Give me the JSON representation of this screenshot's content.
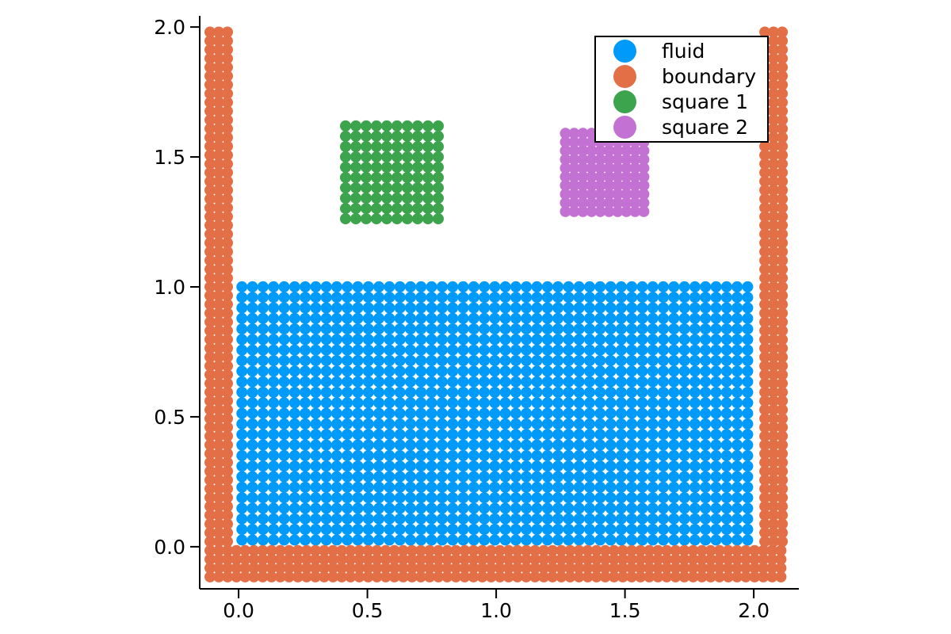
{
  "chart_data": {
    "type": "scatter",
    "title": "",
    "xlabel": "",
    "ylabel": "",
    "grid": false,
    "xlim": [
      -0.151,
      2.175
    ],
    "ylim": [
      -0.162,
      2.043
    ],
    "xticks": {
      "values": [
        0.0,
        0.5,
        1.0,
        1.5,
        2.0
      ],
      "labels": [
        "0.0",
        "0.5",
        "1.0",
        "1.5",
        "2.0"
      ]
    },
    "yticks": {
      "values": [
        0.0,
        0.5,
        1.0,
        1.5,
        2.0
      ],
      "labels": [
        "0.0",
        "0.5",
        "1.0",
        "1.5",
        "2.0"
      ]
    },
    "legend": {
      "position": "upper right",
      "border_color": "#000000",
      "background": "#ffffff"
    },
    "marker_radius_px": 7,
    "series": [
      {
        "name": "fluid",
        "color": "#009AFA",
        "grids": [
          {
            "x0": 0.013,
            "dx": 0.0409,
            "nx": 49,
            "y0": 0.026,
            "dy": 0.0406,
            "ny": 25
          }
        ]
      },
      {
        "name": "boundary",
        "color": "#E36F47",
        "grids": [
          {
            "x0": -0.111,
            "dx": 0.0341,
            "nx": 66,
            "y0": -0.116,
            "dy": 0.0338,
            "ny": 4
          },
          {
            "x0": -0.111,
            "dx": 0.0338,
            "nx": 3,
            "y0": 0.02,
            "dy": 0.0338,
            "ny": 59
          },
          {
            "x0": 2.043,
            "dx": 0.0338,
            "nx": 3,
            "y0": 0.02,
            "dy": 0.0338,
            "ny": 59
          }
        ]
      },
      {
        "name": "square 1",
        "color": "#3DA44E",
        "grids": [
          {
            "x0": 0.415,
            "dx": 0.04,
            "nx": 10,
            "y0": 1.262,
            "dy": 0.0397,
            "ny": 10
          }
        ]
      },
      {
        "name": "square 2",
        "color": "#C371D2",
        "grids": [
          {
            "x0": 1.269,
            "dx": 0.0338,
            "nx": 10,
            "y0": 1.29,
            "dy": 0.0334,
            "ny": 10
          }
        ]
      }
    ]
  }
}
